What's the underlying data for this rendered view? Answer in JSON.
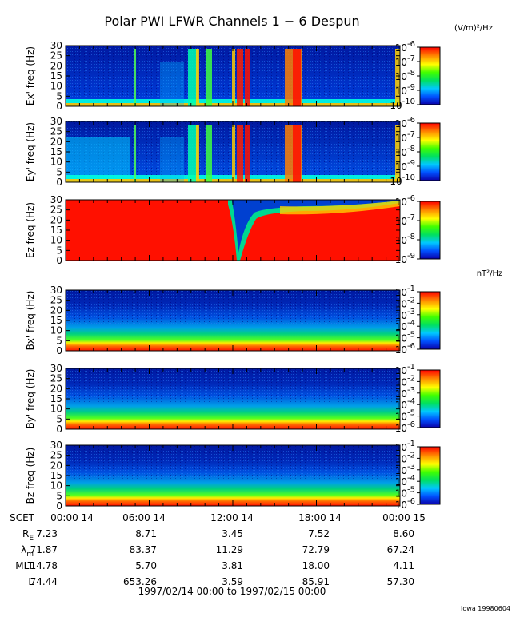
{
  "title": "Polar PWI LFWR Channels 1 − 6 Despun",
  "units_e": "(V/m)²/Hz",
  "units_b": "nT²/Hz",
  "footer": "Iowa 19980604",
  "time_range": "1997/02/14 00:00 to 1997/02/15 00:00",
  "chart_data": {
    "type": "heatmap",
    "x_ticks": [
      "00:00 14",
      "06:00 14",
      "12:00 14",
      "18:00 14",
      "00:00 15"
    ],
    "y_ticks": [
      "0",
      "5",
      "10",
      "15",
      "20",
      "25",
      "30"
    ],
    "ylim": [
      0,
      30
    ],
    "panels": [
      {
        "ylabel": "Ex' freq (Hz)",
        "cbar": {
          "range": "1e-10 to 1e-6",
          "labels": [
            [
              "10",
              "-6"
            ],
            [
              "10",
              "-7"
            ],
            [
              "10",
              "-8"
            ],
            [
              "10",
              "-9"
            ],
            [
              "10",
              "-10"
            ]
          ]
        }
      },
      {
        "ylabel": "Ey' freq (Hz)",
        "cbar": {
          "range": "1e-10 to 1e-6",
          "labels": [
            [
              "10",
              "-6"
            ],
            [
              "10",
              "-7"
            ],
            [
              "10",
              "-8"
            ],
            [
              "10",
              "-9"
            ],
            [
              "10",
              "-10"
            ]
          ]
        }
      },
      {
        "ylabel": "Ez freq (Hz)",
        "cbar": {
          "range": "1e-9 to 1e-6",
          "labels": [
            [
              "10",
              "-6"
            ],
            [
              "10",
              "-7"
            ],
            [
              "10",
              "-8"
            ],
            [
              "10",
              "-9"
            ]
          ]
        }
      },
      {
        "ylabel": "Bx' freq (Hz)",
        "cbar": {
          "range": "1e-6 to 1e-1",
          "labels": [
            [
              "10",
              "-1"
            ],
            [
              "10",
              "-2"
            ],
            [
              "10",
              "-3"
            ],
            [
              "10",
              "-4"
            ],
            [
              "10",
              "-5"
            ],
            [
              "10",
              "-6"
            ]
          ]
        }
      },
      {
        "ylabel": "By' freq (Hz)",
        "cbar": {
          "range": "1e-6 to 1e-1",
          "labels": [
            [
              "10",
              "-1"
            ],
            [
              "10",
              "-2"
            ],
            [
              "10",
              "-3"
            ],
            [
              "10",
              "-4"
            ],
            [
              "10",
              "-5"
            ],
            [
              "10",
              "-6"
            ]
          ]
        }
      },
      {
        "ylabel": "Bz freq (Hz)",
        "cbar": {
          "range": "1e-6 to 1e-1",
          "labels": [
            [
              "10",
              "-1"
            ],
            [
              "10",
              "-2"
            ],
            [
              "10",
              "-3"
            ],
            [
              "10",
              "-4"
            ],
            [
              "10",
              "-5"
            ],
            [
              "10",
              "-6"
            ]
          ]
        }
      }
    ],
    "ephemeris": [
      {
        "label": "SCET",
        "values": [
          "00:00 14",
          "06:00 14",
          "12:00 14",
          "18:00 14",
          "00:00 15"
        ]
      },
      {
        "label": "R",
        "sub": "E",
        "values": [
          "7.23",
          "8.71",
          "3.45",
          "7.52",
          "8.60"
        ]
      },
      {
        "label": "λ",
        "sub": "m",
        "values": [
          "71.87",
          "83.37",
          "11.29",
          "72.79",
          "67.24"
        ]
      },
      {
        "label": "MLT",
        "values": [
          "14.78",
          "5.70",
          "3.81",
          "18.00",
          "4.11"
        ]
      },
      {
        "label": "L",
        "values": [
          "74.44",
          "653.26",
          "3.59",
          "85.91",
          "57.30"
        ]
      }
    ]
  }
}
